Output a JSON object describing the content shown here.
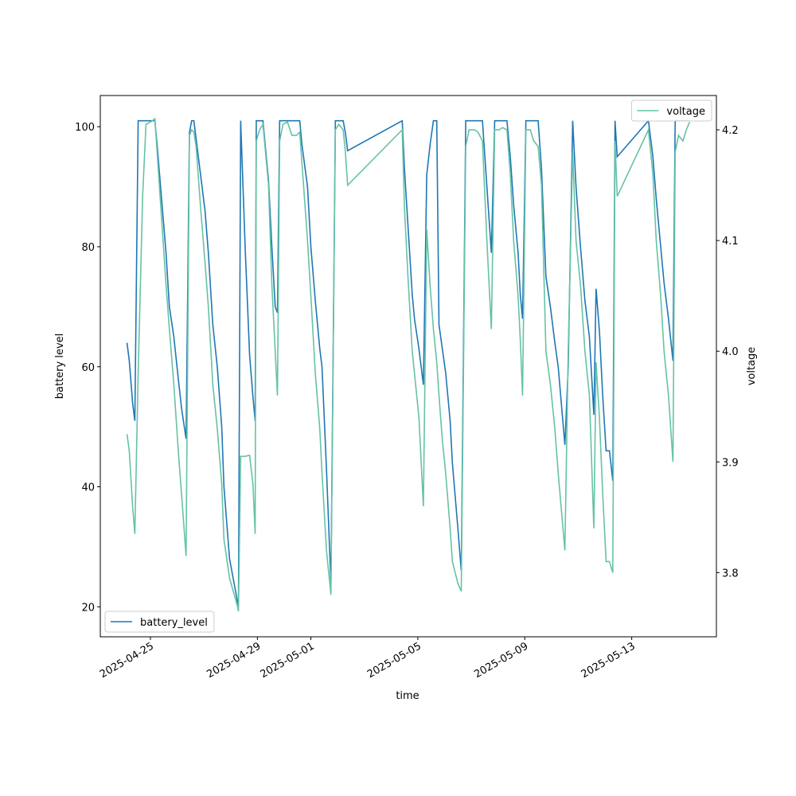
{
  "chart_data": {
    "type": "line",
    "x_label": "time",
    "y_label": "battery level",
    "y2_label": "voltage",
    "x": [
      "2025-04-24T03:00",
      "2025-04-24T05:00",
      "2025-04-24T08:00",
      "2025-04-24T10:00",
      "2025-04-24T13:00",
      "2025-04-24T17:00",
      "2025-04-24T20:00",
      "2025-04-25T00:00",
      "2025-04-25T04:00",
      "2025-04-25T06:00",
      "2025-04-25T10:00",
      "2025-04-25T14:00",
      "2025-04-25T17:00",
      "2025-04-25T21:00",
      "2025-04-26T01:00",
      "2025-04-26T04:00",
      "2025-04-26T08:00",
      "2025-04-26T11:00",
      "2025-04-26T13:00",
      "2025-04-26T15:00",
      "2025-04-26T17:00",
      "2025-04-26T21:00",
      "2025-04-27T01:00",
      "2025-04-27T04:00",
      "2025-04-27T08:00",
      "2025-04-27T12:00",
      "2025-04-27T16:00",
      "2025-04-27T18:00",
      "2025-04-27T23:00",
      "2025-04-28T06:00",
      "2025-04-28T07:00",
      "2025-04-28T09:00",
      "2025-04-28T13:00",
      "2025-04-28T17:00",
      "2025-04-28T20:00",
      "2025-04-28T22:00",
      "2025-04-28T23:00",
      "2025-04-29T02:00",
      "2025-04-29T05:00",
      "2025-04-29T10:00",
      "2025-04-29T13:00",
      "2025-04-29T16:00",
      "2025-04-29T18:00",
      "2025-04-29T20:00",
      "2025-04-29T23:00",
      "2025-04-30T03:00",
      "2025-04-30T07:00",
      "2025-04-30T11:00",
      "2025-04-30T14:00",
      "2025-04-30T16:00",
      "2025-04-30T21:00",
      "2025-05-01T00:00",
      "2025-05-01T04:00",
      "2025-05-01T08:00",
      "2025-05-01T10:00",
      "2025-05-01T14:00",
      "2025-05-01T18:00",
      "2025-05-01T22:00",
      "2025-05-02T01:00",
      "2025-05-02T05:00",
      "2025-05-02T07:00",
      "2025-05-02T09:00",
      "2025-05-04T10:00",
      "2025-05-04T12:00",
      "2025-05-04T15:00",
      "2025-05-04T19:00",
      "2025-05-04T21:00",
      "2025-05-05T01:00",
      "2025-05-05T05:00",
      "2025-05-05T08:00",
      "2025-05-05T11:00",
      "2025-05-05T14:00",
      "2025-05-05T17:00",
      "2025-05-05T19:00",
      "2025-05-05T22:00",
      "2025-05-06T01:00",
      "2025-05-06T05:00",
      "2025-05-06T07:00",
      "2025-05-06T12:00",
      "2025-05-06T15:00",
      "2025-05-06T19:00",
      "2025-05-06T22:00",
      "2025-05-07T03:00",
      "2025-05-07T06:00",
      "2025-05-07T10:00",
      "2025-05-07T14:00",
      "2025-05-07T18:00",
      "2025-05-07T21:00",
      "2025-05-08T01:00",
      "2025-05-08T04:00",
      "2025-05-08T08:00",
      "2025-05-08T11:00",
      "2025-05-08T14:00",
      "2025-05-08T18:00",
      "2025-05-08T20:00",
      "2025-05-08T22:00",
      "2025-05-09T01:00",
      "2025-05-09T05:00",
      "2025-05-09T08:00",
      "2025-05-09T12:00",
      "2025-05-09T15:00",
      "2025-05-09T19:00",
      "2025-05-09T23:00",
      "2025-05-10T03:00",
      "2025-05-10T06:00",
      "2025-05-10T12:00",
      "2025-05-10T15:00",
      "2025-05-10T19:00",
      "2025-05-10T22:00",
      "2025-05-11T02:00",
      "2025-05-11T06:00",
      "2025-05-11T10:00",
      "2025-05-11T14:00",
      "2025-05-11T16:00",
      "2025-05-11T19:00",
      "2025-05-11T22:00",
      "2025-05-12T01:00",
      "2025-05-12T04:00",
      "2025-05-12T07:00",
      "2025-05-12T09:00",
      "2025-05-12T11:00",
      "2025-05-13T15:00",
      "2025-05-13T19:00",
      "2025-05-13T22:00",
      "2025-05-14T02:00",
      "2025-05-14T05:00",
      "2025-05-14T09:00",
      "2025-05-14T13:00",
      "2025-05-14T15:00",
      "2025-05-14T18:00",
      "2025-05-14T22:00",
      "2025-05-15T01:00",
      "2025-05-15T04:00"
    ],
    "series": [
      {
        "name": "battery_level",
        "color": "#1f77b4",
        "legend_loc": "lower left",
        "values": [
          64,
          61,
          54,
          51,
          101,
          101,
          101,
          101,
          101,
          97,
          88,
          79,
          70,
          65,
          58,
          53,
          48,
          99,
          101,
          101,
          98,
          92,
          86,
          79,
          67,
          60,
          50,
          40,
          28,
          21,
          20,
          101,
          80,
          62,
          55,
          51,
          101,
          101,
          101,
          91,
          80,
          70,
          69,
          101,
          101,
          101,
          101,
          101,
          101,
          97,
          90,
          80,
          71,
          63,
          60,
          43,
          24,
          101,
          101,
          101,
          99,
          96,
          101,
          93,
          84,
          72,
          68,
          63,
          57,
          92,
          97,
          101,
          101,
          67,
          63,
          59,
          51,
          44,
          33,
          26,
          101,
          101,
          101,
          101,
          101,
          90,
          79,
          101,
          101,
          101,
          101,
          95,
          87,
          79,
          72,
          68,
          101,
          101,
          101,
          101,
          93,
          75,
          70,
          64,
          60,
          47,
          60,
          101,
          90,
          80,
          71,
          65,
          52,
          73,
          66,
          55,
          46,
          46,
          41,
          101,
          95,
          101,
          95,
          88,
          80,
          74,
          68,
          61,
          101,
          101,
          101,
          101,
          101
        ]
      },
      {
        "name": "voltage",
        "color": "#66c2a5",
        "axis": "y2",
        "legend_loc": "upper right",
        "values": [
          3.925,
          3.91,
          3.86,
          3.835,
          3.98,
          4.14,
          4.205,
          4.207,
          4.21,
          4.18,
          4.12,
          4.06,
          4.02,
          3.97,
          3.91,
          3.87,
          3.815,
          4.195,
          4.2,
          4.198,
          4.185,
          4.13,
          4.08,
          4.04,
          3.97,
          3.93,
          3.88,
          3.83,
          3.795,
          3.77,
          3.765,
          3.905,
          3.905,
          3.906,
          3.88,
          3.835,
          4.19,
          4.2,
          4.205,
          4.15,
          4.06,
          4.0,
          3.96,
          4.19,
          4.205,
          4.207,
          4.195,
          4.195,
          4.198,
          4.17,
          4.1,
          4.05,
          3.98,
          3.93,
          3.89,
          3.82,
          3.78,
          4.2,
          4.205,
          4.2,
          4.18,
          4.15,
          4.2,
          4.13,
          4.07,
          4.0,
          3.98,
          3.94,
          3.86,
          4.11,
          4.06,
          4.02,
          3.99,
          3.96,
          3.92,
          3.89,
          3.84,
          3.81,
          3.79,
          3.783,
          4.185,
          4.2,
          4.2,
          4.198,
          4.19,
          4.1,
          4.02,
          4.2,
          4.2,
          4.202,
          4.2,
          4.16,
          4.1,
          4.05,
          4.01,
          3.96,
          4.2,
          4.2,
          4.19,
          4.185,
          4.15,
          4.0,
          3.97,
          3.93,
          3.89,
          3.82,
          4.0,
          4.18,
          4.1,
          4.06,
          4.0,
          3.96,
          3.84,
          3.99,
          3.94,
          3.87,
          3.81,
          3.81,
          3.8,
          4.19,
          4.14,
          4.2,
          4.16,
          4.1,
          4.05,
          4.0,
          3.96,
          3.9,
          4.18,
          4.195,
          4.19,
          4.2,
          4.207
        ]
      }
    ],
    "xlim": [
      "2025-04-23T03:00",
      "2025-05-16T04:00"
    ],
    "xticks": [
      "2025-04-25",
      "2025-04-29",
      "2025-05-01",
      "2025-05-05",
      "2025-05-09",
      "2025-05-13"
    ],
    "ylim": [
      15,
      105.2
    ],
    "yticks": [
      20,
      40,
      60,
      80,
      100
    ],
    "y2lim": [
      3.742,
      4.231
    ],
    "y2ticks": [
      3.8,
      3.9,
      {
        "value": 4,
        "label": "4.0"
      },
      4.1,
      4.2
    ]
  }
}
